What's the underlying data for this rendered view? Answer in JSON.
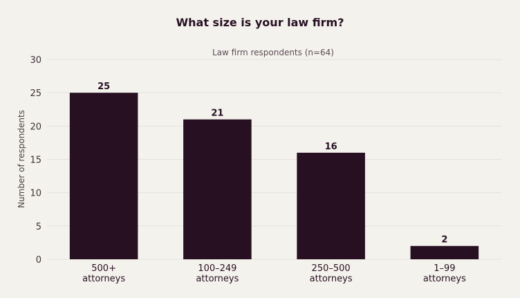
{
  "chart_data": {
    "type": "bar",
    "title": "What size is your law firm?",
    "subtitle": "Law firm respondents (n=64)",
    "xlabel": "",
    "ylabel": "Number of respondents",
    "categories": [
      [
        "500+",
        "attorneys"
      ],
      [
        "100–249",
        "attorneys"
      ],
      [
        "250–500",
        "attorneys"
      ],
      [
        "1–99",
        "attorneys"
      ]
    ],
    "values": [
      25,
      21,
      16,
      2
    ],
    "ylim": [
      0,
      30
    ],
    "yticks": [
      0,
      5,
      10,
      15,
      20,
      25,
      30
    ],
    "grid": true,
    "legend": "none",
    "bar_color": "#261022",
    "background_color": "#f4f2ed"
  }
}
